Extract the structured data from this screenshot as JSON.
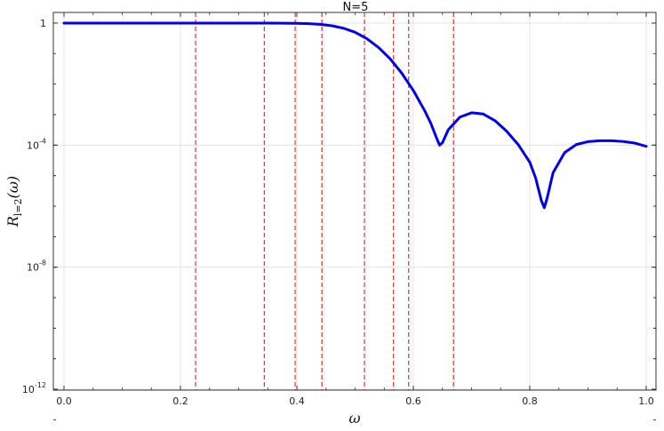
{
  "chart_data": {
    "type": "line",
    "title": "N=5",
    "xlabel": "ω",
    "ylabel": {
      "main": "R",
      "subscript": "l=2",
      "suffix": "(ω)"
    },
    "xlim": [
      0,
      1
    ],
    "ylim": [
      1e-12,
      1
    ],
    "y_scale": "log",
    "x_ticks": [
      0.0,
      0.2,
      0.4,
      0.6,
      0.8,
      1.0
    ],
    "x_tick_labels": [
      "0.0",
      "0.2",
      "0.4",
      "0.6",
      "0.8",
      "1.0"
    ],
    "y_ticks": [
      1,
      0.0001,
      1e-08,
      1e-12
    ],
    "y_tick_labels": [
      {
        "text": "1",
        "base": "",
        "exp": ""
      },
      {
        "text": "",
        "base": "10",
        "exp": "-4"
      },
      {
        "text": "",
        "base": "10",
        "exp": "-8"
      },
      {
        "text": "",
        "base": "10",
        "exp": "-12"
      }
    ],
    "grid": true,
    "series": [
      {
        "color": "#0000ee",
        "x": [
          0.0,
          0.1,
          0.2,
          0.3,
          0.35,
          0.38,
          0.4,
          0.42,
          0.44,
          0.46,
          0.48,
          0.5,
          0.52,
          0.54,
          0.56,
          0.58,
          0.6,
          0.62,
          0.63,
          0.64,
          0.645,
          0.65,
          0.66,
          0.68,
          0.7,
          0.72,
          0.74,
          0.76,
          0.78,
          0.8,
          0.81,
          0.82,
          0.825,
          0.83,
          0.84,
          0.86,
          0.88,
          0.9,
          0.92,
          0.94,
          0.96,
          0.98,
          1.0
        ],
        "y": [
          1,
          1,
          1,
          1,
          0.999,
          0.995,
          0.985,
          0.96,
          0.91,
          0.82,
          0.68,
          0.5,
          0.31,
          0.16,
          0.068,
          0.023,
          0.0062,
          0.00129,
          0.00052,
          0.00017,
          0.0001,
          0.00012,
          0.00032,
          0.00083,
          0.00115,
          0.00105,
          0.00064,
          0.00029,
          0.000105,
          2.75e-05,
          8.5e-06,
          1.5e-06,
          8.9e-07,
          1.9e-06,
          1.25e-05,
          5.75e-05,
          0.000105,
          0.00013,
          0.00014,
          0.00014,
          0.000132,
          0.000117,
          9.15e-05
        ]
      }
    ],
    "vlines": {
      "color": "#d62020",
      "style": "dashed",
      "x": [
        0.226,
        0.344,
        0.397,
        0.443,
        0.516,
        0.566,
        0.592,
        0.669
      ]
    }
  }
}
